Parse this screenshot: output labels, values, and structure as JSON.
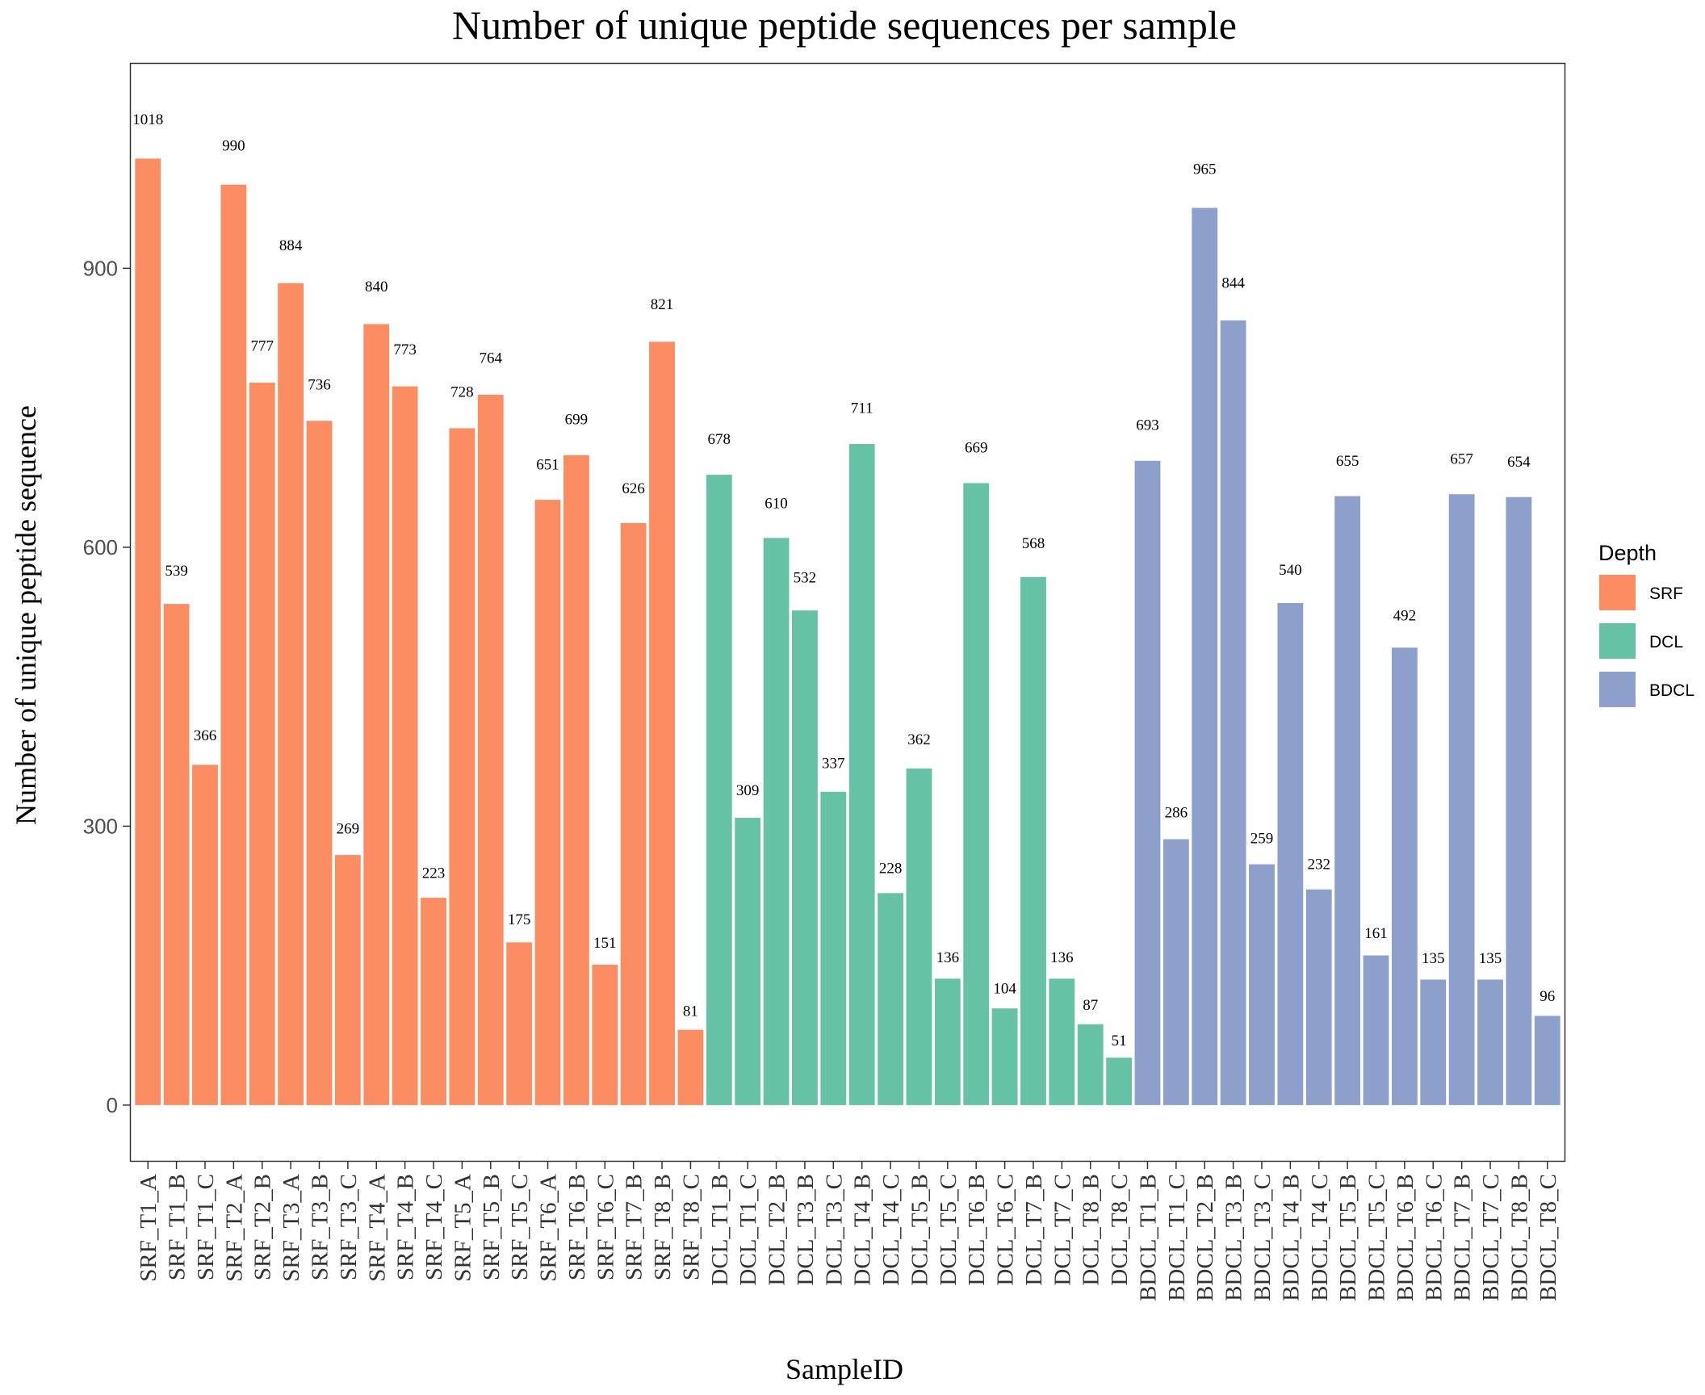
{
  "chart_data": {
    "type": "bar",
    "title": "Number of unique peptide sequences per sample",
    "xlabel": "SampleID",
    "ylabel": "Number of unique peptide sequence",
    "ylim": [
      -60,
      1120
    ],
    "yticks": [
      0,
      300,
      600,
      900
    ],
    "grid": false,
    "legend": {
      "title": "Depth",
      "position": "right",
      "entries": [
        {
          "name": "SRF",
          "color": "#FC8D62"
        },
        {
          "name": "DCL",
          "color": "#66C2A5"
        },
        {
          "name": "BDCL",
          "color": "#8DA0CB"
        }
      ]
    },
    "categories": [
      "SRF_T1_A",
      "SRF_T1_B",
      "SRF_T1_C",
      "SRF_T2_A",
      "SRF_T2_B",
      "SRF_T3_A",
      "SRF_T3_B",
      "SRF_T3_C",
      "SRF_T4_A",
      "SRF_T4_B",
      "SRF_T4_C",
      "SRF_T5_A",
      "SRF_T5_B",
      "SRF_T5_C",
      "SRF_T6_A",
      "SRF_T6_B",
      "SRF_T6_C",
      "SRF_T7_B",
      "SRF_T8_B",
      "SRF_T8_C",
      "DCL_T1_B",
      "DCL_T1_C",
      "DCL_T2_B",
      "DCL_T3_B",
      "DCL_T3_C",
      "DCL_T4_B",
      "DCL_T4_C",
      "DCL_T5_B",
      "DCL_T5_C",
      "DCL_T6_B",
      "DCL_T6_C",
      "DCL_T7_B",
      "DCL_T7_C",
      "DCL_T8_B",
      "DCL_T8_C",
      "BDCL_T1_B",
      "BDCL_T1_C",
      "BDCL_T2_B",
      "BDCL_T3_B",
      "BDCL_T3_C",
      "BDCL_T4_B",
      "BDCL_T4_C",
      "BDCL_T5_B",
      "BDCL_T5_C",
      "BDCL_T6_B",
      "BDCL_T6_C",
      "BDCL_T7_B",
      "BDCL_T7_C",
      "BDCL_T8_B",
      "BDCL_T8_C"
    ],
    "values": [
      1018,
      539,
      366,
      990,
      777,
      884,
      736,
      269,
      840,
      773,
      223,
      728,
      764,
      175,
      651,
      699,
      151,
      626,
      821,
      81,
      678,
      309,
      610,
      532,
      337,
      711,
      228,
      362,
      136,
      669,
      104,
      568,
      136,
      87,
      51,
      693,
      286,
      965,
      844,
      259,
      540,
      232,
      655,
      161,
      492,
      135,
      657,
      135,
      654,
      96
    ],
    "groups": [
      "SRF",
      "SRF",
      "SRF",
      "SRF",
      "SRF",
      "SRF",
      "SRF",
      "SRF",
      "SRF",
      "SRF",
      "SRF",
      "SRF",
      "SRF",
      "SRF",
      "SRF",
      "SRF",
      "SRF",
      "SRF",
      "SRF",
      "SRF",
      "DCL",
      "DCL",
      "DCL",
      "DCL",
      "DCL",
      "DCL",
      "DCL",
      "DCL",
      "DCL",
      "DCL",
      "DCL",
      "DCL",
      "DCL",
      "DCL",
      "DCL",
      "BDCL",
      "BDCL",
      "BDCL",
      "BDCL",
      "BDCL",
      "BDCL",
      "BDCL",
      "BDCL",
      "BDCL",
      "BDCL",
      "BDCL",
      "BDCL",
      "BDCL",
      "BDCL",
      "BDCL"
    ]
  }
}
